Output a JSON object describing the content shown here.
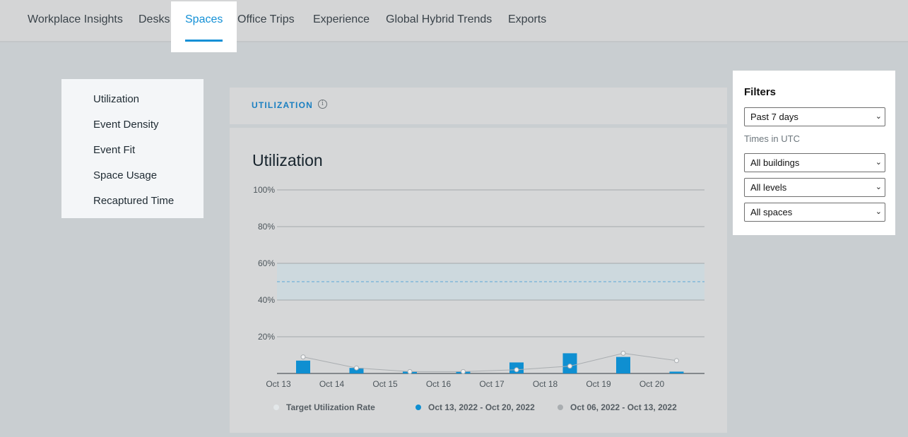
{
  "nav": {
    "tabs": [
      "Workplace Insights",
      "Desks",
      "Spaces",
      "Office Trips",
      "Experience",
      "Global Hybrid Trends",
      "Exports"
    ],
    "active": "Spaces"
  },
  "sidebar": {
    "items": [
      "Utilization",
      "Event Density",
      "Event Fit",
      "Space Usage",
      "Recaptured Time"
    ]
  },
  "section": {
    "label": "UTILIZATION",
    "info_icon": "info-icon",
    "title": "Utilization"
  },
  "filters": {
    "title": "Filters",
    "time_range": "Past 7 days",
    "timezone_note": "Times in UTC",
    "building": "All buildings",
    "level": "All levels",
    "space": "All spaces"
  },
  "colors": {
    "accent": "#1390d6",
    "bar": "#0f8fd1",
    "previous": "#a9adb0",
    "target_band": "#cdd9de"
  },
  "chart_data": {
    "type": "bar",
    "categories": [
      "Oct 13",
      "Oct 14",
      "Oct 15",
      "Oct 16",
      "Oct 17",
      "Oct 18",
      "Oct 19",
      "Oct 20"
    ],
    "ylim": [
      0,
      100
    ],
    "yticks": [
      "100%",
      "80%",
      "60%",
      "40%",
      "20%"
    ],
    "target": {
      "name": "Target Utilization Rate",
      "low": 40,
      "high": 60,
      "line": 50
    },
    "series": [
      {
        "name": "Oct 13, 2022 - Oct 20, 2022",
        "kind": "bar",
        "values": [
          7,
          3,
          1,
          1,
          6,
          11,
          9,
          1
        ]
      },
      {
        "name": "Oct 06, 2022 - Oct 13, 2022",
        "kind": "line",
        "values": [
          9,
          3,
          1,
          1,
          2,
          4,
          11,
          7
        ]
      }
    ],
    "legend_position": "bottom"
  }
}
